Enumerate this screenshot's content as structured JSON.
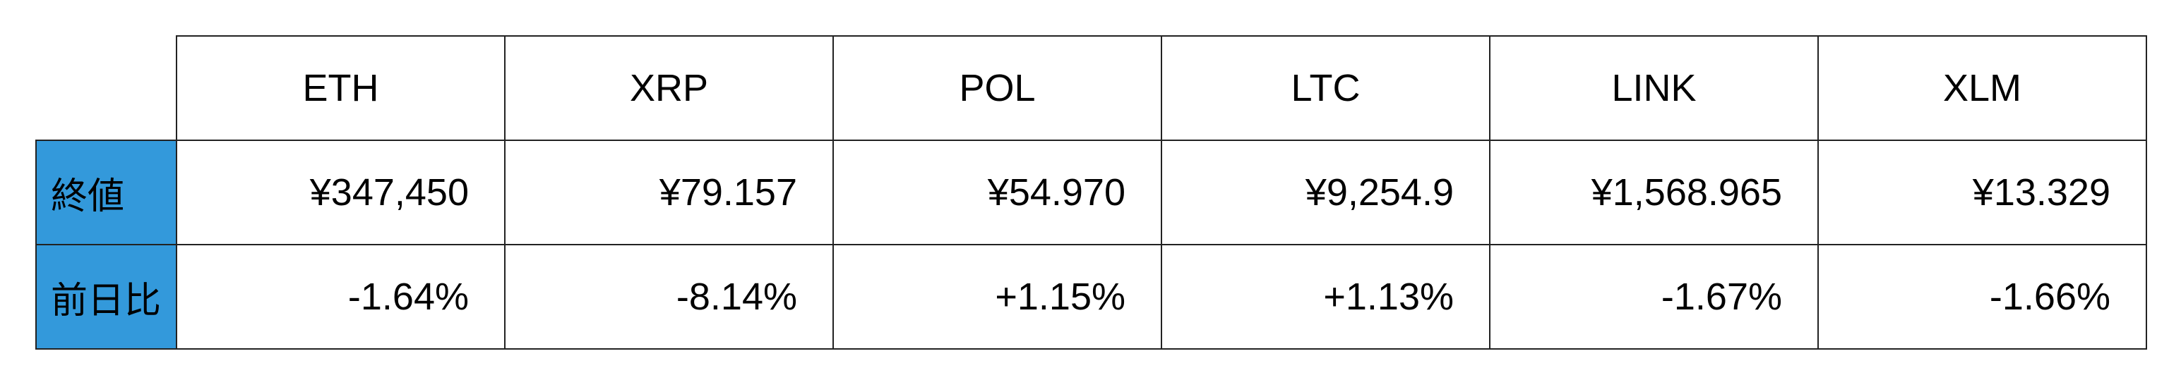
{
  "columns": [
    "ETH",
    "XRP",
    "POL",
    "LTC",
    "LINK",
    "XLM"
  ],
  "rows": [
    {
      "label": "終値",
      "values": [
        "¥347,450",
        "¥79.157",
        "¥54.970",
        "¥9,254.9",
        "¥1,568.965",
        "¥13.329"
      ]
    },
    {
      "label": "前日比",
      "values": [
        "-1.64%",
        "-8.14%",
        "+1.15%",
        "+1.13%",
        "-1.67%",
        "-1.66%"
      ]
    }
  ],
  "colors": {
    "label_background": "#3399db",
    "border": "#222222"
  }
}
